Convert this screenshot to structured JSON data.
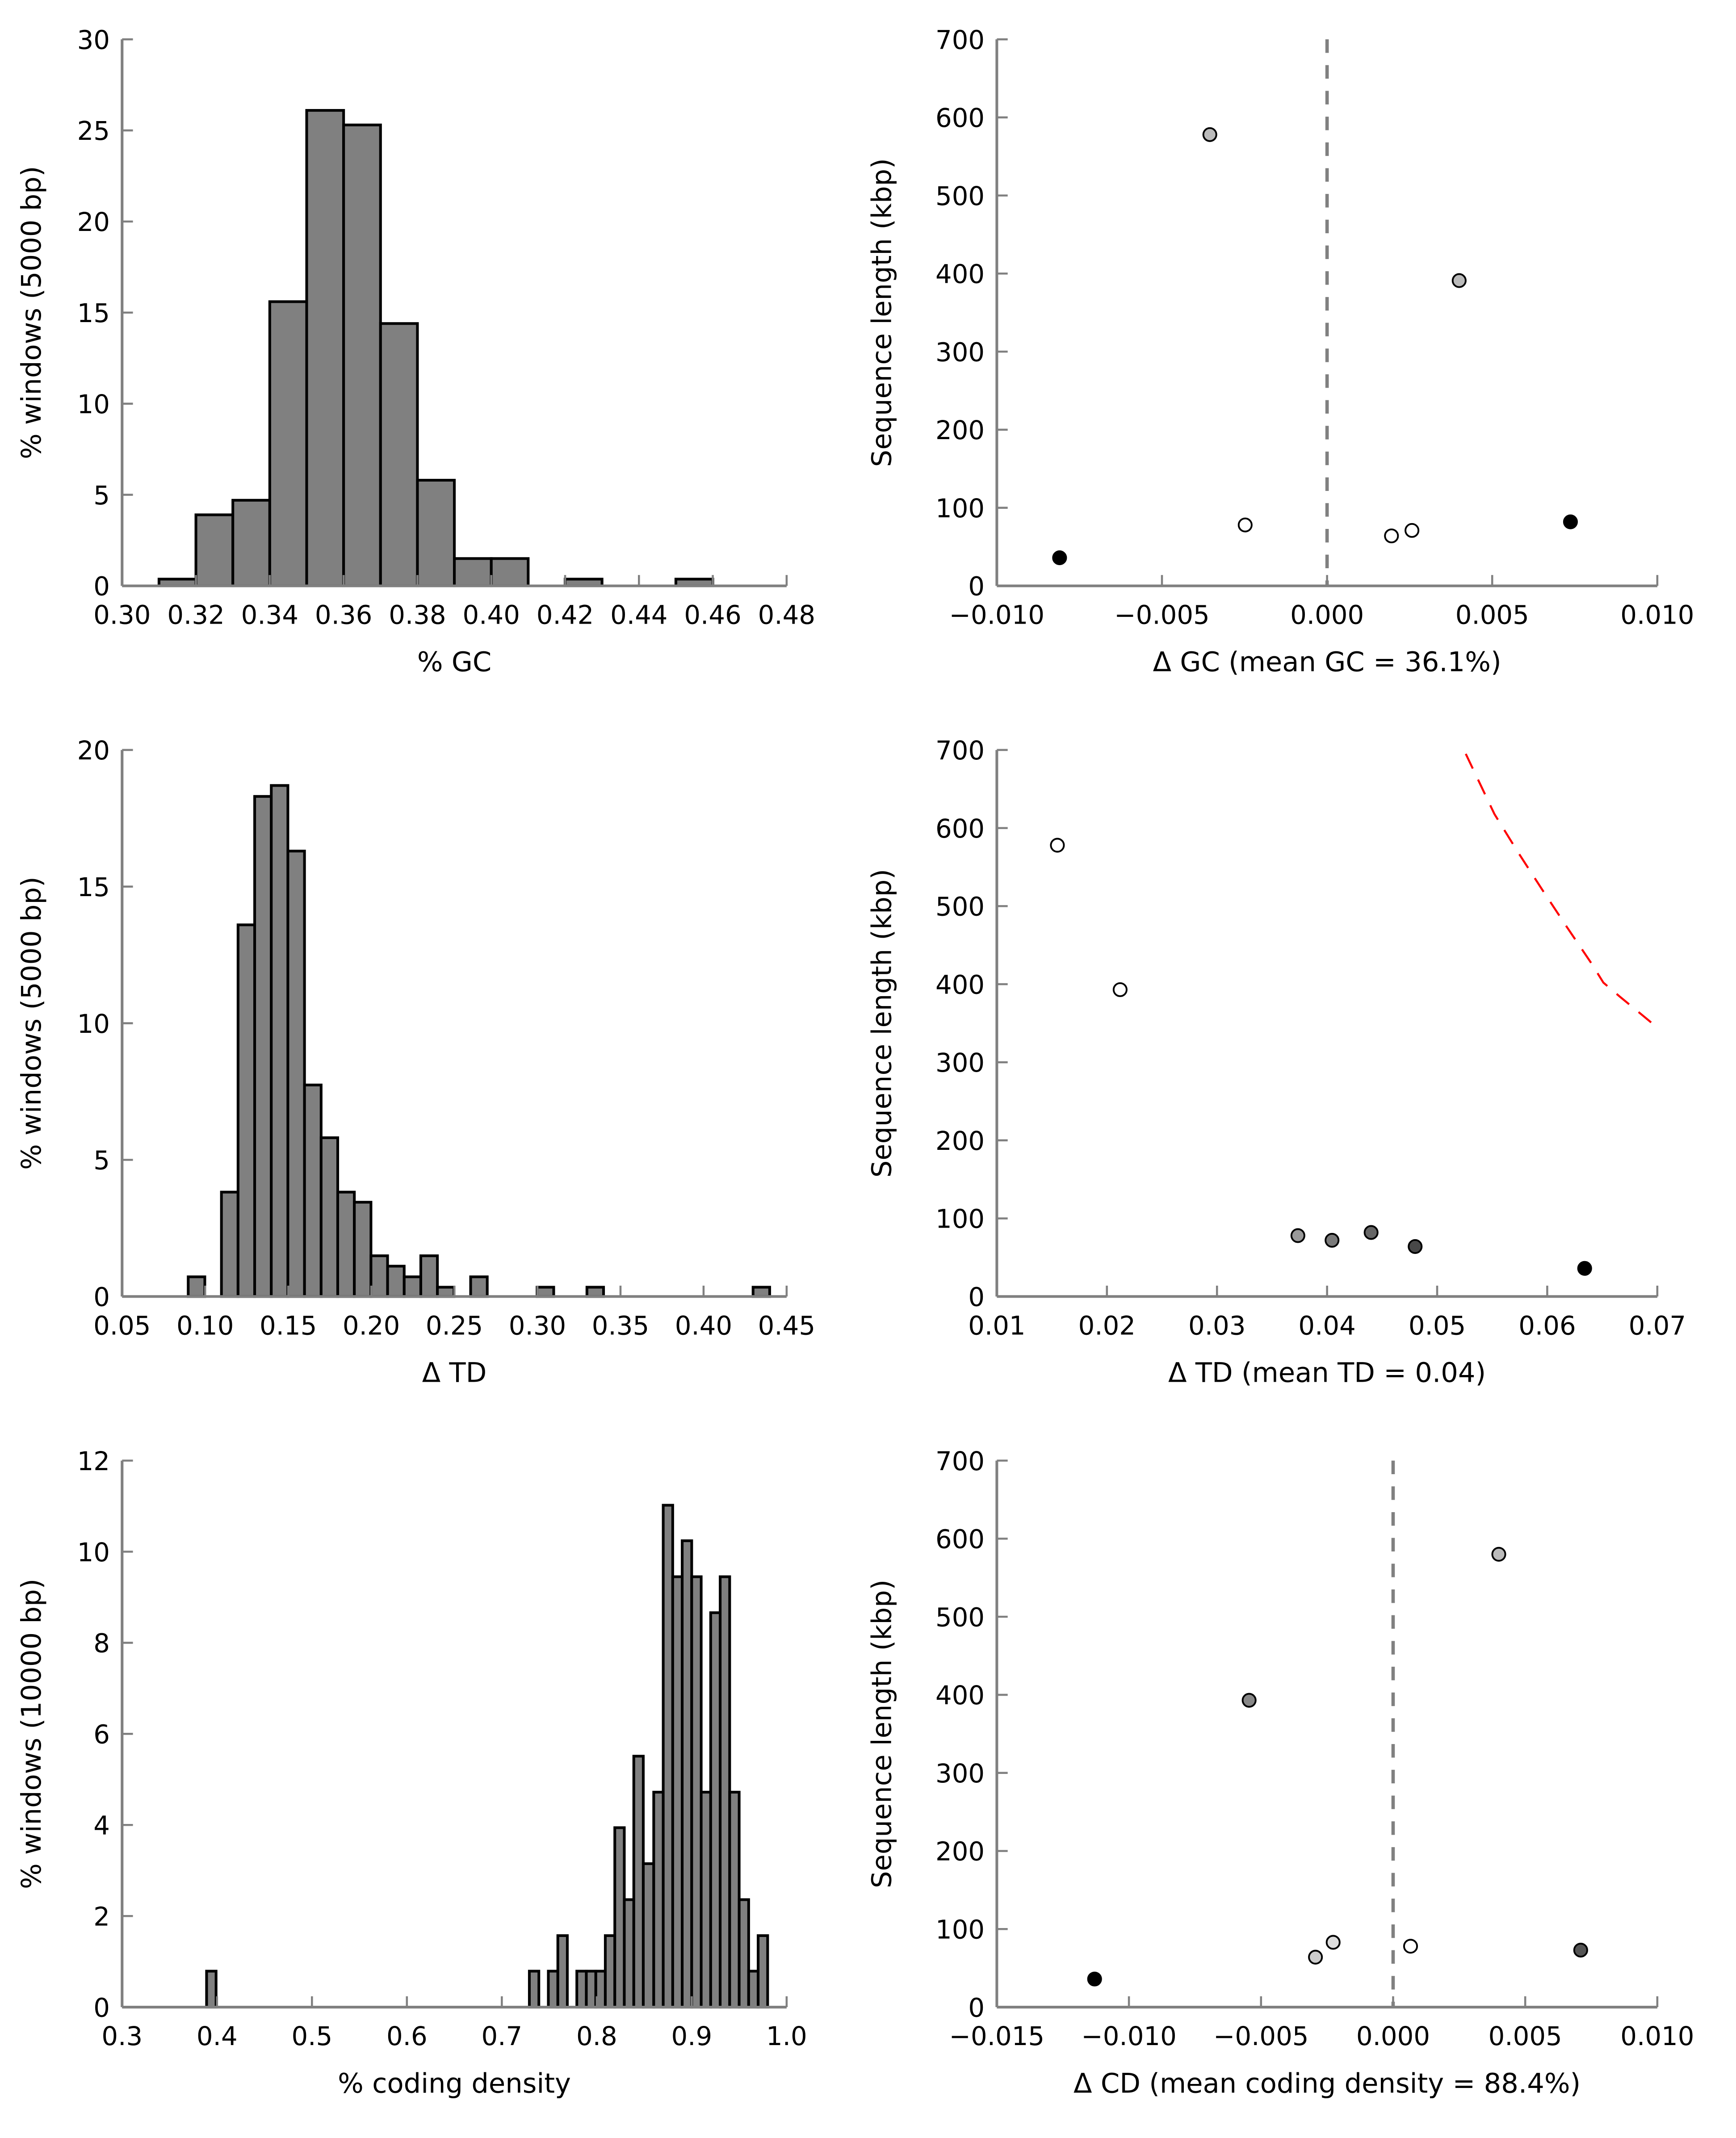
{
  "chart_data": [
    {
      "type": "bar",
      "subtype": "histogram",
      "xlabel": "% GC",
      "ylabel": "% windows (5000 bp)",
      "xlim": [
        0.3,
        0.48
      ],
      "ylim": [
        0,
        30
      ],
      "xticks": [
        0.3,
        0.32,
        0.34,
        0.36,
        0.38,
        0.4,
        0.42,
        0.44,
        0.46,
        0.48
      ],
      "xticklabels": [
        "0.30",
        "0.32",
        "0.34",
        "0.36",
        "0.38",
        "0.40",
        "0.42",
        "0.44",
        "0.46",
        "0.48"
      ],
      "yticks": [
        0,
        5,
        10,
        15,
        20,
        25,
        30
      ],
      "yticklabels": [
        "0",
        "5",
        "10",
        "15",
        "20",
        "25",
        "30"
      ],
      "bar_color": "#808080",
      "bins": [
        [
          0.31,
          0.32,
          0.37
        ],
        [
          0.32,
          0.33,
          3.9
        ],
        [
          0.33,
          0.34,
          4.7
        ],
        [
          0.34,
          0.35,
          15.6
        ],
        [
          0.35,
          0.36,
          26.1
        ],
        [
          0.36,
          0.37,
          25.3
        ],
        [
          0.37,
          0.38,
          14.4
        ],
        [
          0.38,
          0.39,
          5.8
        ],
        [
          0.39,
          0.4,
          1.5
        ],
        [
          0.4,
          0.41,
          1.5
        ],
        [
          0.42,
          0.43,
          0.37
        ],
        [
          0.45,
          0.46,
          0.37
        ]
      ]
    },
    {
      "type": "scatter",
      "xlabel": "Δ GC (mean GC = 36.1%)",
      "ylabel": "Sequence length (kbp)",
      "xlim": [
        -0.01,
        0.01
      ],
      "ylim": [
        0,
        700
      ],
      "xticks": [
        -0.01,
        -0.005,
        0.0,
        0.005,
        0.01
      ],
      "xticklabels": [
        "−0.010",
        "−0.005",
        "0.000",
        "0.005",
        "0.010"
      ],
      "yticks": [
        0,
        100,
        200,
        300,
        400,
        500,
        600,
        700
      ],
      "yticklabels": [
        "0",
        "100",
        "200",
        "300",
        "400",
        "500",
        "600",
        "700"
      ],
      "vline": 0,
      "points": [
        {
          "x": -0.0081,
          "y": 36,
          "color": "#000000"
        },
        {
          "x": -0.00355,
          "y": 578,
          "color": "#bbbbbb"
        },
        {
          "x": -0.00248,
          "y": 78,
          "color": "#ffffff"
        },
        {
          "x": 0.00195,
          "y": 64,
          "color": "#ffffff"
        },
        {
          "x": 0.00257,
          "y": 71,
          "color": "#ffffff"
        },
        {
          "x": 0.004,
          "y": 391,
          "color": "#bbbbbb"
        },
        {
          "x": 0.00737,
          "y": 82,
          "color": "#000000"
        }
      ]
    },
    {
      "type": "bar",
      "subtype": "histogram",
      "xlabel": "Δ TD",
      "ylabel": "% windows (5000 bp)",
      "xlim": [
        0.05,
        0.45
      ],
      "ylim": [
        0,
        20
      ],
      "xticks": [
        0.05,
        0.1,
        0.15,
        0.2,
        0.25,
        0.3,
        0.35,
        0.4,
        0.45
      ],
      "xticklabels": [
        "0.05",
        "0.10",
        "0.15",
        "0.20",
        "0.25",
        "0.30",
        "0.35",
        "0.40",
        "0.45"
      ],
      "yticks": [
        0,
        5,
        10,
        15,
        20
      ],
      "yticklabels": [
        "0",
        "5",
        "10",
        "15",
        "20"
      ],
      "bar_color": "#808080",
      "bins": [
        [
          0.0898,
          0.0998,
          0.72
        ],
        [
          0.1098,
          0.1198,
          3.82
        ],
        [
          0.1198,
          0.1298,
          13.6
        ],
        [
          0.1298,
          0.1398,
          18.3
        ],
        [
          0.1398,
          0.1498,
          18.7
        ],
        [
          0.1498,
          0.1598,
          16.3
        ],
        [
          0.1598,
          0.1698,
          7.74
        ],
        [
          0.1698,
          0.1798,
          5.81
        ],
        [
          0.1798,
          0.1898,
          3.82
        ],
        [
          0.1898,
          0.1998,
          3.45
        ],
        [
          0.1998,
          0.2098,
          1.49
        ],
        [
          0.2098,
          0.2198,
          1.11
        ],
        [
          0.2198,
          0.2298,
          0.72
        ],
        [
          0.2298,
          0.2398,
          1.49
        ],
        [
          0.2398,
          0.2498,
          0.34
        ],
        [
          0.2598,
          0.2698,
          0.72
        ],
        [
          0.2998,
          0.3098,
          0.34
        ],
        [
          0.3298,
          0.3398,
          0.34
        ],
        [
          0.4298,
          0.4398,
          0.34
        ]
      ]
    },
    {
      "type": "scatter",
      "xlabel": "Δ TD (mean TD = 0.04)",
      "ylabel": "Sequence length (kbp)",
      "xlim": [
        0.01,
        0.07
      ],
      "ylim": [
        0,
        700
      ],
      "xticks": [
        0.01,
        0.02,
        0.03,
        0.04,
        0.05,
        0.06,
        0.07
      ],
      "xticklabels": [
        "0.01",
        "0.02",
        "0.03",
        "0.04",
        "0.05",
        "0.06",
        "0.07"
      ],
      "yticks": [
        0,
        100,
        200,
        300,
        400,
        500,
        600,
        700
      ],
      "yticklabels": [
        "0",
        "100",
        "200",
        "300",
        "400",
        "500",
        "600",
        "700"
      ],
      "points": [
        {
          "x": 0.0155,
          "y": 578,
          "color": "#ffffff"
        },
        {
          "x": 0.0212,
          "y": 393,
          "color": "#ffffff"
        },
        {
          "x": 0.03735,
          "y": 78,
          "color": "#999999"
        },
        {
          "x": 0.04045,
          "y": 72,
          "color": "#7a7a7a"
        },
        {
          "x": 0.044,
          "y": 82,
          "color": "#666666"
        },
        {
          "x": 0.048,
          "y": 64,
          "color": "#484848"
        },
        {
          "x": 0.0634,
          "y": 36,
          "color": "#000000"
        }
      ],
      "curve": {
        "color": "#ff0000",
        "x": [
          0.0526,
          0.0552,
          0.0573,
          0.0595,
          0.0617,
          0.064,
          0.0651,
          0.0666,
          0.0697
        ],
        "y": [
          695,
          618,
          570,
          522,
          475,
          427,
          402,
          384,
          348
        ]
      }
    },
    {
      "type": "bar",
      "subtype": "histogram",
      "xlabel": "% coding density",
      "ylabel": "% windows (10000 bp)",
      "xlim": [
        0.3,
        1.0
      ],
      "ylim": [
        0,
        12
      ],
      "xticks": [
        0.3,
        0.4,
        0.5,
        0.6,
        0.7,
        0.8,
        0.9,
        1.0
      ],
      "xticklabels": [
        "0.3",
        "0.4",
        "0.5",
        "0.6",
        "0.7",
        "0.8",
        "0.9",
        "1.0"
      ],
      "yticks": [
        0,
        2,
        4,
        6,
        8,
        10,
        12
      ],
      "yticklabels": [
        "0",
        "2",
        "4",
        "6",
        "8",
        "10",
        "12"
      ],
      "bar_color": "#808080",
      "bins": [
        [
          0.389,
          0.399,
          0.79
        ],
        [
          0.729,
          0.739,
          0.79
        ],
        [
          0.749,
          0.759,
          0.79
        ],
        [
          0.759,
          0.769,
          1.57
        ],
        [
          0.779,
          0.789,
          0.79
        ],
        [
          0.789,
          0.799,
          0.79
        ],
        [
          0.799,
          0.809,
          0.79
        ],
        [
          0.809,
          0.819,
          1.57
        ],
        [
          0.819,
          0.829,
          3.94
        ],
        [
          0.829,
          0.839,
          2.36
        ],
        [
          0.839,
          0.849,
          5.51
        ],
        [
          0.849,
          0.86,
          3.15
        ],
        [
          0.86,
          0.87,
          4.72
        ],
        [
          0.87,
          0.88,
          11.02
        ],
        [
          0.88,
          0.89,
          9.45
        ],
        [
          0.89,
          0.9,
          10.24
        ],
        [
          0.9,
          0.91,
          9.45
        ],
        [
          0.91,
          0.92,
          4.72
        ],
        [
          0.92,
          0.93,
          8.66
        ],
        [
          0.93,
          0.94,
          9.45
        ],
        [
          0.94,
          0.95,
          4.72
        ],
        [
          0.95,
          0.96,
          2.36
        ],
        [
          0.96,
          0.97,
          0.79
        ],
        [
          0.97,
          0.98,
          1.57
        ]
      ]
    },
    {
      "type": "scatter",
      "xlabel": "Δ CD (mean coding density = 88.4%)",
      "ylabel": "Sequence length (kbp)",
      "xlim": [
        -0.015,
        0.01
      ],
      "ylim": [
        0,
        700
      ],
      "xticks": [
        -0.015,
        -0.01,
        -0.005,
        0.0,
        0.005,
        0.01
      ],
      "xticklabels": [
        "−0.015",
        "−0.010",
        "−0.005",
        "0.000",
        "0.005",
        "0.010"
      ],
      "yticks": [
        0,
        100,
        200,
        300,
        400,
        500,
        600,
        700
      ],
      "yticklabels": [
        "0",
        "100",
        "200",
        "300",
        "400",
        "500",
        "600",
        "700"
      ],
      "vline": 0,
      "points": [
        {
          "x": -0.0113,
          "y": 36,
          "color": "#000000"
        },
        {
          "x": -0.00545,
          "y": 393,
          "color": "#888888"
        },
        {
          "x": -0.00294,
          "y": 64,
          "color": "#cccccc"
        },
        {
          "x": -0.00227,
          "y": 83,
          "color": "#dddddd"
        },
        {
          "x": 0.00066,
          "y": 78,
          "color": "#ffffff"
        },
        {
          "x": 0.004,
          "y": 580,
          "color": "#bbbbbb"
        },
        {
          "x": 0.0071,
          "y": 73,
          "color": "#555555"
        }
      ]
    }
  ]
}
